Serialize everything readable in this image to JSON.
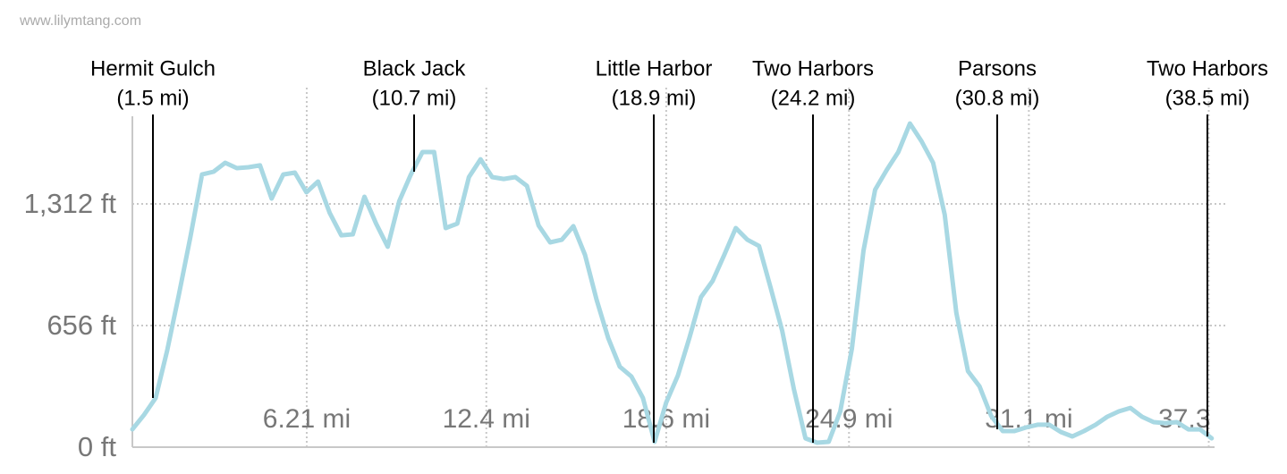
{
  "chart_data": {
    "type": "line",
    "watermark": "www.lilymtang.com",
    "color": "#a8d8e3",
    "grid": true,
    "xlim": [
      0.2,
      37.5
    ],
    "ylim": [
      0,
      1785
    ],
    "xticks": [
      {
        "value": 6.21,
        "label": "6.21 mi"
      },
      {
        "value": 12.4,
        "label": "12.4 mi"
      },
      {
        "value": 18.6,
        "label": "18.6 mi"
      },
      {
        "value": 24.9,
        "label": "24.9 mi"
      },
      {
        "value": 31.1,
        "label": "31.1 mi"
      },
      37.3
    ],
    "yticks": [
      {
        "value": 0,
        "label": "0 ft"
      },
      {
        "value": 656,
        "label": "656 ft"
      },
      {
        "value": 1312,
        "label": "1,312 ft"
      }
    ],
    "x": [
      0.2,
      0.6,
      1.0,
      1.4,
      1.8,
      2.2,
      2.6,
      3.0,
      3.4,
      3.8,
      4.2,
      4.6,
      5.0,
      5.4,
      5.8,
      6.2,
      6.6,
      7.0,
      7.4,
      7.8,
      8.2,
      8.6,
      9.0,
      9.4,
      9.8,
      10.2,
      10.6,
      11.0,
      11.4,
      11.8,
      12.2,
      12.6,
      13.0,
      13.4,
      13.8,
      14.2,
      14.6,
      15.0,
      15.4,
      15.8,
      16.2,
      16.6,
      17.0,
      17.4,
      17.8,
      18.2,
      18.6,
      19.0,
      19.4,
      19.8,
      20.2,
      20.6,
      21.0,
      21.4,
      21.8,
      22.2,
      22.6,
      23.0,
      23.4,
      23.8,
      24.2,
      24.6,
      25.0,
      25.4,
      25.8,
      26.2,
      26.6,
      27.0,
      27.4,
      27.8,
      28.2,
      28.6,
      29.0,
      29.4,
      29.8,
      30.2,
      30.6,
      31.0,
      31.4,
      31.8,
      32.2,
      32.6,
      33.0,
      33.4,
      33.8,
      34.2,
      34.6,
      35.0,
      35.4,
      35.8,
      36.2,
      36.6,
      37.0,
      37.4
    ],
    "values": [
      96,
      174,
      265,
      521,
      820,
      1134,
      1471,
      1486,
      1534,
      1505,
      1510,
      1520,
      1341,
      1471,
      1481,
      1375,
      1433,
      1264,
      1143,
      1148,
      1351,
      1206,
      1081,
      1327,
      1471,
      1592,
      1592,
      1182,
      1206,
      1457,
      1553,
      1457,
      1447,
      1457,
      1409,
      1196,
      1105,
      1119,
      1192,
      1037,
      796,
      589,
      434,
      381,
      265,
      29,
      241,
      386,
      589,
      810,
      897,
      1037,
      1182,
      1119,
      1085,
      859,
      627,
      314,
      48,
      24,
      29,
      193,
      531,
      1061,
      1389,
      1495,
      1592,
      1746,
      1650,
      1534,
      1254,
      724,
      410,
      328,
      169,
      87,
      87,
      106,
      121,
      121,
      82,
      58,
      87,
      121,
      164,
      193,
      212,
      164,
      135,
      130,
      135,
      96,
      96,
      48
    ],
    "annotations": [
      {
        "label": "Hermit Gulch",
        "sublabel": "(1.5 mi)"
      },
      {
        "label": "Black Jack",
        "sublabel": "(10.7 mi)"
      },
      {
        "label": "Little Harbor",
        "sublabel": "(18.9 mi)"
      },
      {
        "label": "Two Harbors",
        "sublabel": "(24.2 mi)"
      },
      {
        "label": "Parsons",
        "sublabel": "(30.8 mi)"
      },
      {
        "label": "Two Harbors",
        "sublabel": "(38.5 mi)"
      }
    ]
  }
}
